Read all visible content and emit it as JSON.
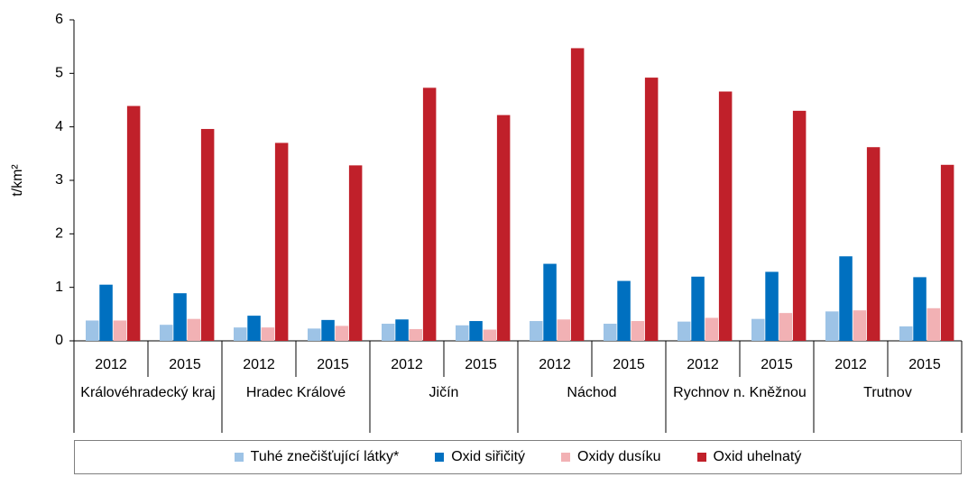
{
  "chart_data": {
    "type": "bar",
    "y_label": "t/km²",
    "categories": [
      "2012",
      "2015",
      "2012",
      "2015",
      "2012",
      "2015",
      "2012",
      "2015",
      "2012",
      "2015",
      "2012",
      "2015"
    ],
    "groups": [
      "Královéhradecký kraj",
      "Hradec Králové",
      "Jičín",
      "Náchod",
      "Rychnov n. Kněžnou",
      "Trutnov"
    ],
    "series": [
      {
        "name": "Tuhé znečišťující látky*",
        "color": "#9dc3e6",
        "values": [
          0.38,
          0.3,
          0.25,
          0.23,
          0.32,
          0.29,
          0.37,
          0.32,
          0.36,
          0.41,
          0.55,
          0.27
        ]
      },
      {
        "name": "Oxid siřičitý",
        "color": "#0070c0",
        "values": [
          1.05,
          0.89,
          0.47,
          0.39,
          0.4,
          0.37,
          1.44,
          1.12,
          1.2,
          1.29,
          1.58,
          1.19
        ]
      },
      {
        "name": "Oxidy dusíku",
        "color": "#f2b1b4",
        "values": [
          0.38,
          0.41,
          0.25,
          0.28,
          0.22,
          0.21,
          0.4,
          0.37,
          0.43,
          0.52,
          0.57,
          0.61
        ]
      },
      {
        "name": "Oxid uhelnatý",
        "color": "#c0202a",
        "values": [
          4.39,
          3.96,
          3.7,
          3.28,
          4.73,
          4.22,
          5.47,
          4.92,
          4.66,
          4.3,
          3.62,
          3.29
        ]
      }
    ],
    "ylim": [
      0,
      6
    ],
    "yticks": [
      0,
      1,
      2,
      3,
      4,
      5,
      6
    ]
  }
}
